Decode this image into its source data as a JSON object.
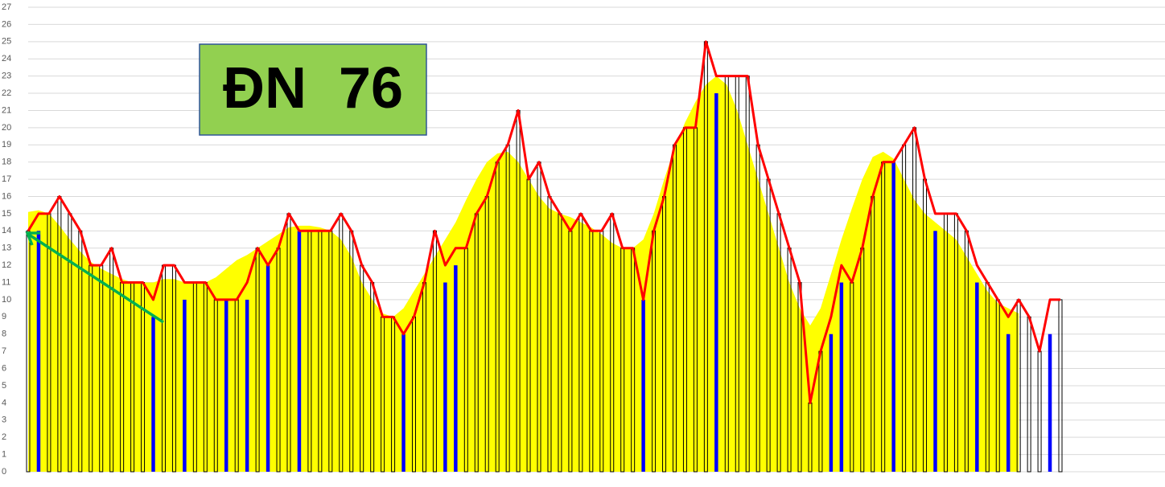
{
  "chart_data": {
    "type": "combo",
    "annotations": [
      {
        "text": "ĐN  76"
      }
    ],
    "ylim": [
      0,
      27
    ],
    "yticks": [
      0,
      1,
      2,
      3,
      4,
      5,
      6,
      7,
      8,
      9,
      10,
      11,
      12,
      13,
      14,
      15,
      16,
      17,
      18,
      19,
      20,
      21,
      22,
      23,
      24,
      25,
      26,
      27
    ],
    "grid": true,
    "categories": [
      null,
      null,
      null,
      null,
      null,
      null,
      null,
      null,
      null,
      null,
      null,
      null,
      null,
      null,
      null,
      null,
      null,
      null,
      null,
      null,
      null,
      null,
      null,
      null,
      null,
      null,
      null,
      null,
      null,
      null,
      null,
      null,
      null,
      null,
      null,
      null,
      null,
      null,
      null,
      null,
      null,
      null,
      null,
      null,
      null,
      null,
      null,
      null,
      null,
      null,
      null,
      null,
      null,
      null,
      null,
      null,
      null,
      null,
      null,
      null,
      null,
      null,
      null,
      null,
      null,
      null,
      null,
      null,
      null,
      null,
      null,
      null,
      null,
      null,
      null,
      null,
      null,
      null,
      null,
      null,
      null,
      null,
      null,
      null,
      null,
      null,
      null,
      null,
      null,
      null,
      null,
      null,
      null,
      null,
      null,
      null,
      null,
      null,
      null,
      null
    ],
    "series": [
      {
        "type": "area",
        "color": "#ffff00",
        "values": [
          15.1,
          15.2,
          15,
          14.3,
          13.5,
          12.8,
          12.2,
          11.8,
          11.5,
          11.2,
          11,
          11,
          11,
          11.2,
          11.2,
          11,
          11,
          11,
          11.3,
          11.8,
          12.3,
          12.6,
          13,
          13.4,
          13.8,
          14.2,
          14.3,
          14.3,
          14.2,
          14,
          13.5,
          12.5,
          11,
          10,
          9.2,
          9,
          9.5,
          10.5,
          11.5,
          12.5,
          13.5,
          14.5,
          15.8,
          17,
          18,
          18.5,
          18.6,
          18,
          17,
          16,
          15.3,
          15,
          14.8,
          14.5,
          14.2,
          13.8,
          13.3,
          13,
          13,
          13.5,
          15,
          17,
          18.8,
          20.3,
          21.5,
          22.5,
          23,
          22.5,
          21,
          19,
          17,
          15,
          13,
          11,
          9.5,
          8.5,
          9.5,
          11.5,
          13.5,
          15.3,
          17,
          18.3,
          18.6,
          18.2,
          17,
          15.8,
          15,
          14.5,
          14,
          13.5,
          12.5,
          11.5,
          10.5,
          9.8,
          9.5,
          9.2,
          null,
          null,
          null,
          null
        ]
      },
      {
        "type": "bar",
        "color": "#000000",
        "values": [
          14,
          null,
          15,
          16,
          15,
          14,
          12,
          12,
          13,
          11,
          11,
          11,
          null,
          12,
          12,
          null,
          11,
          11,
          10,
          null,
          10,
          null,
          13,
          null,
          13,
          15,
          null,
          14,
          14,
          14,
          15,
          14,
          12,
          11,
          9,
          9,
          null,
          9,
          11,
          14,
          null,
          null,
          13,
          15,
          16,
          18,
          19,
          21,
          17,
          18,
          16,
          15,
          14,
          15,
          14,
          14,
          15,
          13,
          13,
          null,
          14,
          16,
          19,
          20,
          20,
          25,
          null,
          23,
          23,
          23,
          19,
          17,
          15,
          13,
          11,
          4,
          7,
          null,
          null,
          11,
          13,
          16,
          18,
          null,
          19,
          20,
          17,
          null,
          15,
          15,
          14,
          null,
          11,
          10,
          null,
          10,
          9,
          7,
          null,
          10
        ]
      },
      {
        "type": "bar",
        "color": "#0000ff",
        "values": [
          null,
          14,
          null,
          null,
          null,
          null,
          null,
          null,
          null,
          null,
          null,
          null,
          9,
          null,
          null,
          10,
          null,
          null,
          null,
          10,
          null,
          10,
          null,
          12,
          null,
          null,
          14,
          null,
          null,
          null,
          null,
          null,
          null,
          null,
          null,
          null,
          8,
          null,
          null,
          null,
          11,
          12,
          null,
          null,
          null,
          null,
          null,
          null,
          null,
          null,
          null,
          null,
          null,
          null,
          null,
          null,
          null,
          null,
          null,
          10,
          null,
          null,
          null,
          null,
          null,
          null,
          22,
          null,
          null,
          null,
          null,
          null,
          null,
          null,
          null,
          null,
          null,
          8,
          11,
          null,
          null,
          null,
          null,
          18,
          null,
          null,
          null,
          14,
          null,
          null,
          null,
          11,
          null,
          null,
          8,
          null,
          null,
          null,
          8,
          null
        ]
      },
      {
        "type": "line",
        "color": "#ff0000",
        "values": [
          14,
          15,
          15,
          16,
          15,
          14,
          12,
          12,
          13,
          11,
          11,
          11,
          10,
          12,
          12,
          11,
          11,
          11,
          10,
          10,
          10,
          11,
          13,
          12,
          13,
          15,
          14,
          14,
          14,
          14,
          15,
          14,
          12,
          11,
          9,
          9,
          8,
          9,
          11,
          14,
          12,
          13,
          13,
          15,
          16,
          18,
          19,
          21,
          17,
          18,
          16,
          15,
          14,
          15,
          14,
          14,
          15,
          13,
          13,
          10,
          14,
          16,
          19,
          20,
          20,
          25,
          23,
          23,
          23,
          23,
          19,
          17,
          15,
          13,
          11,
          4,
          7,
          9,
          12,
          11,
          13,
          16,
          18,
          18,
          19,
          20,
          17,
          15,
          15,
          15,
          14,
          12,
          11,
          10,
          9,
          10,
          9,
          7,
          10,
          10
        ]
      }
    ]
  }
}
